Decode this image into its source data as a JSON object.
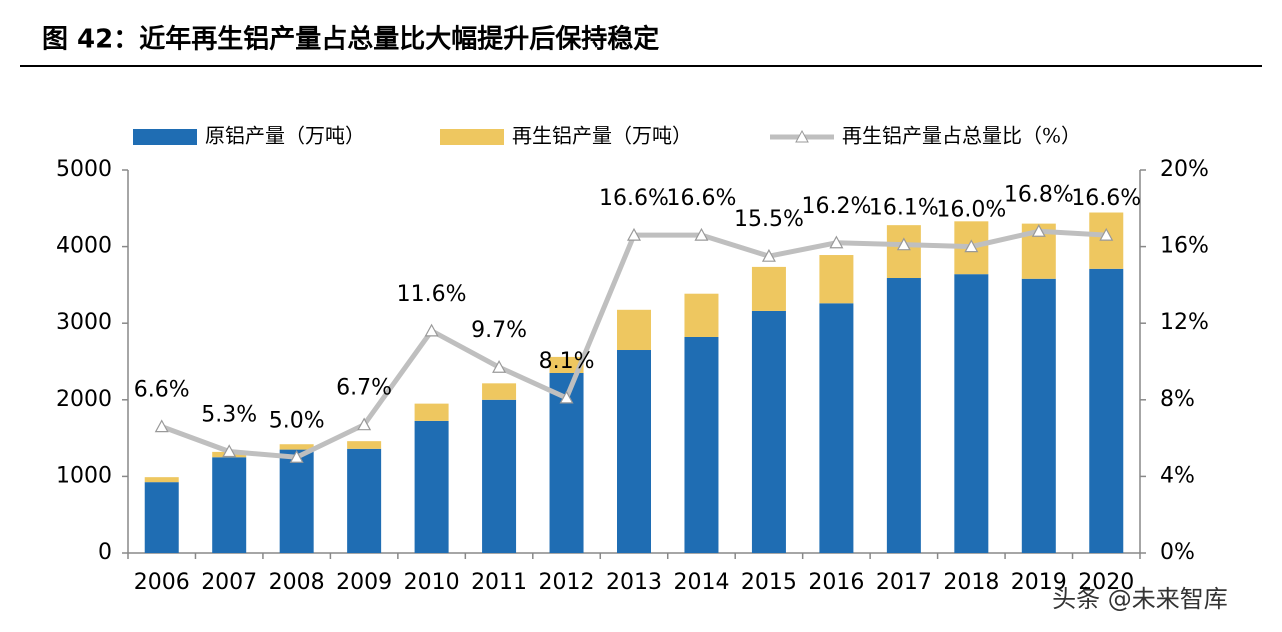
{
  "chart_data": {
    "type": "bar",
    "title": "图 42：近年再生铝产量占总量比大幅提升后保持稳定",
    "watermark": "头条 @未来智库",
    "categories": [
      "2006",
      "2007",
      "2008",
      "2009",
      "2010",
      "2011",
      "2012",
      "2013",
      "2014",
      "2015",
      "2016",
      "2017",
      "2018",
      "2019",
      "2020"
    ],
    "stacked": true,
    "legend": "top",
    "series": [
      {
        "name": "原铝产量（万吨）",
        "color": "#1f6db3",
        "type": "bar",
        "values": [
          925,
          1250,
          1350,
          1360,
          1725,
          2000,
          2350,
          2650,
          2820,
          3160,
          3260,
          3590,
          3640,
          3580,
          3710
        ]
      },
      {
        "name": "再生铝产量（万吨）",
        "color": "#eec760",
        "type": "bar",
        "values": [
          65,
          70,
          70,
          100,
          225,
          215,
          210,
          525,
          565,
          575,
          630,
          690,
          690,
          720,
          735
        ]
      },
      {
        "name": "再生铝产量占总量比（%）",
        "color": "#bfbfbf",
        "type": "line",
        "axis": "y2",
        "values": [
          6.6,
          5.3,
          5.0,
          6.7,
          11.6,
          9.7,
          8.1,
          16.6,
          16.6,
          15.5,
          16.2,
          16.1,
          16.0,
          16.8,
          16.6
        ],
        "value_labels": [
          "6.6%",
          "5.3%",
          "5.0%",
          "6.7%",
          "11.6%",
          "9.7%",
          "8.1%",
          "16.6%",
          "16.6%",
          "15.5%",
          "16.2%",
          "16.1%",
          "16.0%",
          "16.8%",
          "16.6%"
        ]
      }
    ],
    "ylim": [
      0,
      5000
    ],
    "yticks": [
      0,
      1000,
      2000,
      3000,
      4000,
      5000
    ],
    "y2lim": [
      0,
      20
    ],
    "y2ticks": [
      {
        "value": 0,
        "label": "0%"
      },
      {
        "value": 4,
        "label": "4%"
      },
      {
        "value": 8,
        "label": "8%"
      },
      {
        "value": 12,
        "label": "12%"
      },
      {
        "value": 16,
        "label": "16%"
      },
      {
        "value": 20,
        "label": "20%"
      }
    ]
  }
}
